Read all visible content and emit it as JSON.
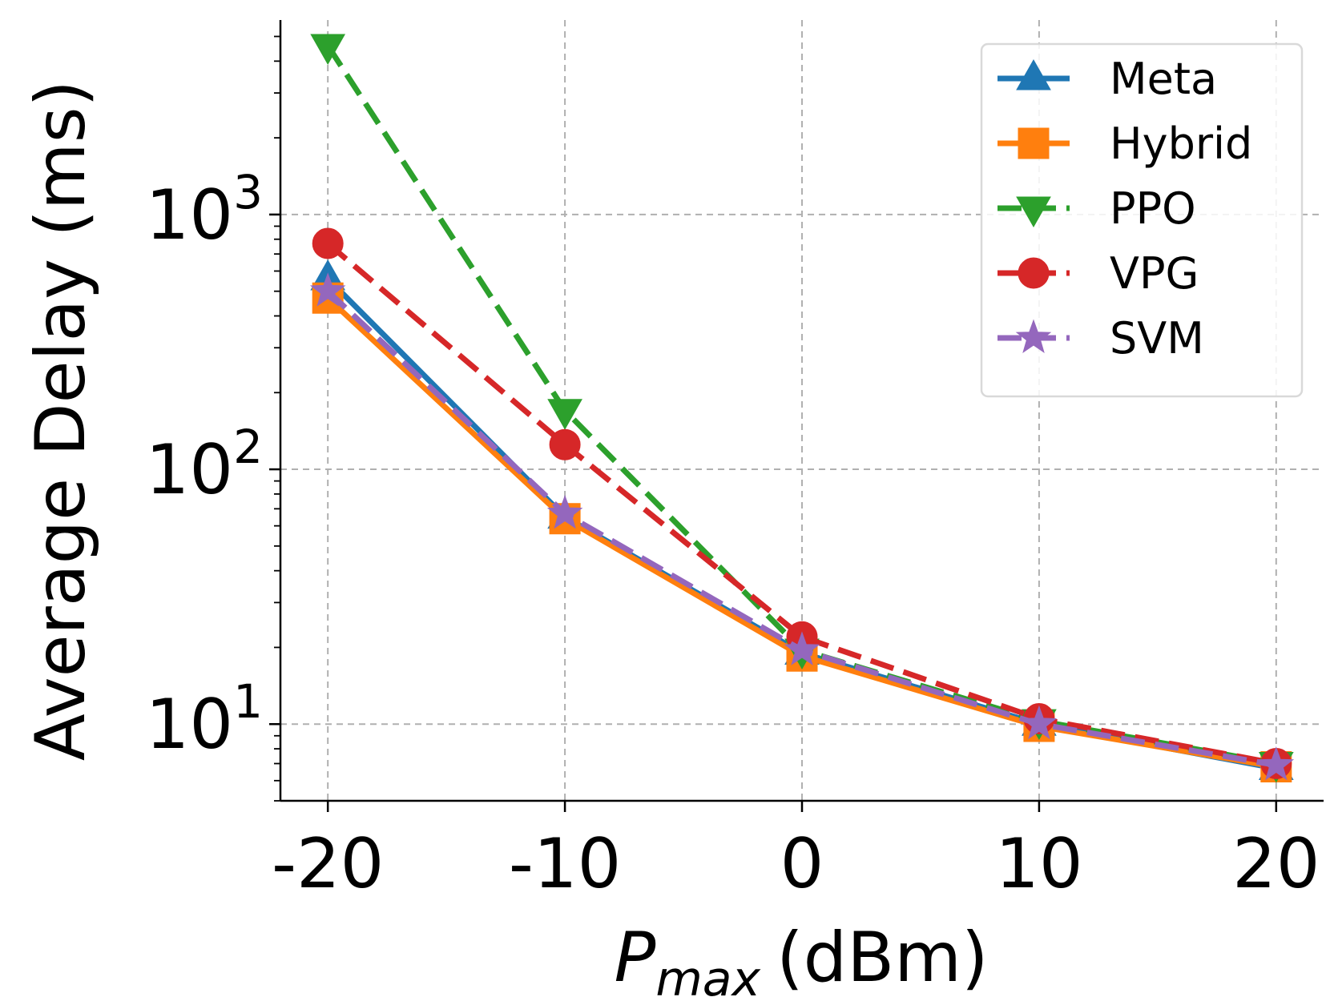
{
  "chart_data": {
    "type": "line",
    "title": "",
    "xlabel_main": "P",
    "xlabel_sub": "max",
    "xlabel_unit": "(dBm)",
    "ylabel": "Average Delay (ms)",
    "yscale": "log",
    "x": [
      -20,
      -10,
      0,
      10,
      20
    ],
    "x_tick_labels": [
      "-20",
      "-10",
      "0",
      "10",
      "20"
    ],
    "xlim": [
      -22,
      22
    ],
    "ylim": [
      5.0,
      5800
    ],
    "y_major_ticks": [
      {
        "value": 10,
        "base": "10",
        "exp": "1"
      },
      {
        "value": 100,
        "base": "10",
        "exp": "2"
      },
      {
        "value": 1000,
        "base": "10",
        "exp": "3"
      }
    ],
    "grid": true,
    "legend_position": "top-right",
    "series": [
      {
        "name": "Meta",
        "values": [
          560,
          65,
          19,
          10,
          6.7
        ],
        "color": "#1f77b4",
        "dashed": false,
        "marker": "triangle-up"
      },
      {
        "name": "Hybrid",
        "values": [
          470,
          64,
          18.5,
          9.8,
          6.8
        ],
        "color": "#ff7f0e",
        "dashed": false,
        "marker": "square"
      },
      {
        "name": "PPO",
        "values": [
          4600,
          170,
          19.5,
          10.3,
          7.0
        ],
        "color": "#2ca02c",
        "dashed": true,
        "marker": "triangle-down"
      },
      {
        "name": "VPG",
        "values": [
          770,
          125,
          22,
          10.5,
          7.0
        ],
        "color": "#d62728",
        "dashed": true,
        "marker": "circle"
      },
      {
        "name": "SVM",
        "values": [
          500,
          67,
          19.5,
          10,
          6.9
        ],
        "color": "#9467bd",
        "dashed": true,
        "marker": "star"
      }
    ]
  }
}
